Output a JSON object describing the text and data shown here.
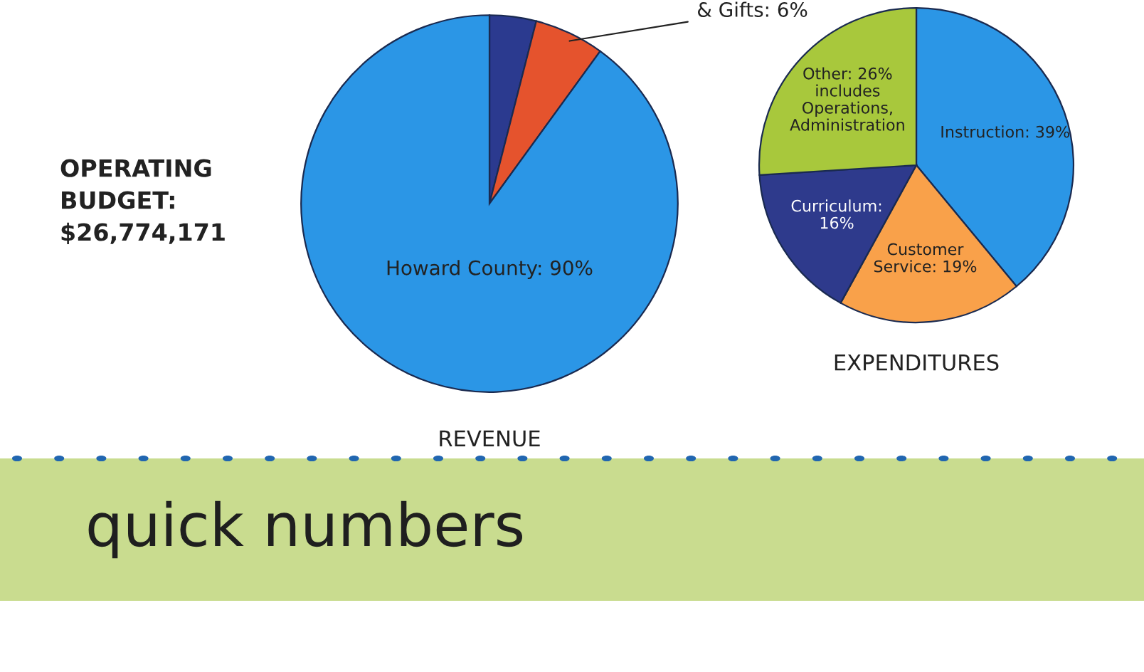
{
  "chart_data": [
    {
      "type": "pie",
      "title": "REVENUE",
      "categories": [
        null,
        "& Gifts: 6%",
        "Howard County: 90%"
      ],
      "values": [
        4,
        6,
        90
      ],
      "colors": [
        "#2b3a8f",
        "#e5532d",
        "#2b96e6"
      ],
      "annotations": [
        "OPERATING\nBUDGET:\n$26,774,171"
      ]
    },
    {
      "type": "pie",
      "title": "EXPENDITURES",
      "categories": [
        "Instruction: 39%",
        "Customer\nService: 19%",
        "Curriculum:\n16%",
        "Other: 26%\nincludes\nOperations,\nAdministration"
      ],
      "values": [
        39,
        19,
        16,
        26
      ],
      "colors": [
        "#2b96e6",
        "#f9a14a",
        "#2e3a8c",
        "#a8c83c"
      ],
      "annotations": [
        "quick numbers"
      ]
    }
  ]
}
